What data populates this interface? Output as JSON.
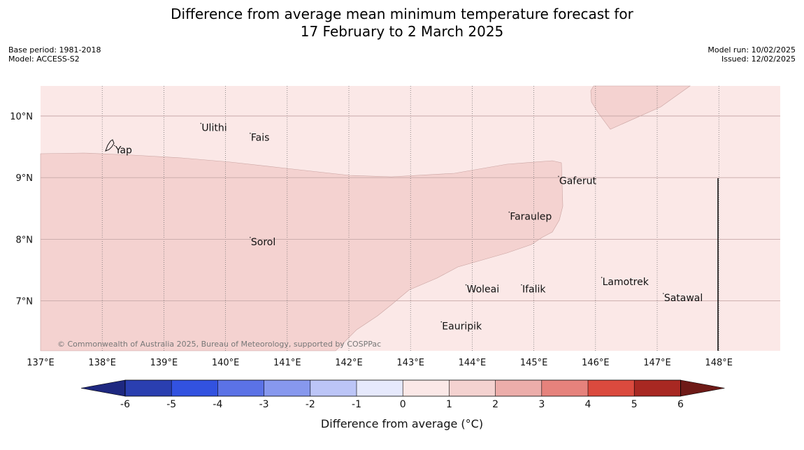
{
  "title_line1": "Difference from average mean minimum temperature forecast for",
  "title_line2": "17 February to 2 March 2025",
  "meta_left": {
    "base_period": "Base period: 1981-2018",
    "model": "Model: ACCESS-S2"
  },
  "meta_right": {
    "model_run": "Model run: 10/02/2025",
    "issued": "Issued: 12/02/2025"
  },
  "lat_labels": [
    "10°N",
    "9°N",
    "8°N",
    "7°N"
  ],
  "lon_labels": [
    "137°E",
    "138°E",
    "139°E",
    "140°E",
    "141°E",
    "142°E",
    "143°E",
    "144°E",
    "145°E",
    "146°E",
    "147°E",
    "148°E"
  ],
  "places": [
    {
      "name": "Yap",
      "lon": 138.2,
      "lat": 9.52
    },
    {
      "name": "Ulithi",
      "lon": 139.6,
      "lat": 9.88
    },
    {
      "name": "Fais",
      "lon": 140.4,
      "lat": 9.72
    },
    {
      "name": "Gaferut",
      "lon": 145.4,
      "lat": 9.02
    },
    {
      "name": "Faraulep",
      "lon": 144.6,
      "lat": 8.44
    },
    {
      "name": "Sorol",
      "lon": 140.4,
      "lat": 8.03
    },
    {
      "name": "Woleai",
      "lon": 143.9,
      "lat": 7.26
    },
    {
      "name": "Ifalik",
      "lon": 144.8,
      "lat": 7.26
    },
    {
      "name": "Lamotrek",
      "lon": 146.1,
      "lat": 7.38
    },
    {
      "name": "Satawal",
      "lon": 147.1,
      "lat": 7.12
    },
    {
      "name": "Eauripik",
      "lon": 143.5,
      "lat": 6.66
    }
  ],
  "credit": "© Commonwealth of Australia 2025, Bureau of Meteorology, supported by COSPPac",
  "legend": {
    "title": "Difference from average (°C)",
    "ticks": [
      "-6",
      "-5",
      "-4",
      "-3",
      "-2",
      "-1",
      "0",
      "1",
      "2",
      "3",
      "4",
      "5",
      "6"
    ],
    "low_color": "#1e2880",
    "high_color": "#6e1a17",
    "colors": [
      "#2a3fb0",
      "#3252e0",
      "#5b72e6",
      "#8798ee",
      "#bcc5f7",
      "#e6e9fc",
      "#fbe8e7",
      "#f4d2d0",
      "#ecadaa",
      "#e6827c",
      "#db4a3e",
      "#a82822"
    ]
  },
  "fill_colors": {
    "plus_0_1": "#fbe8e7",
    "plus_1_2": "#f4d2d0"
  }
}
